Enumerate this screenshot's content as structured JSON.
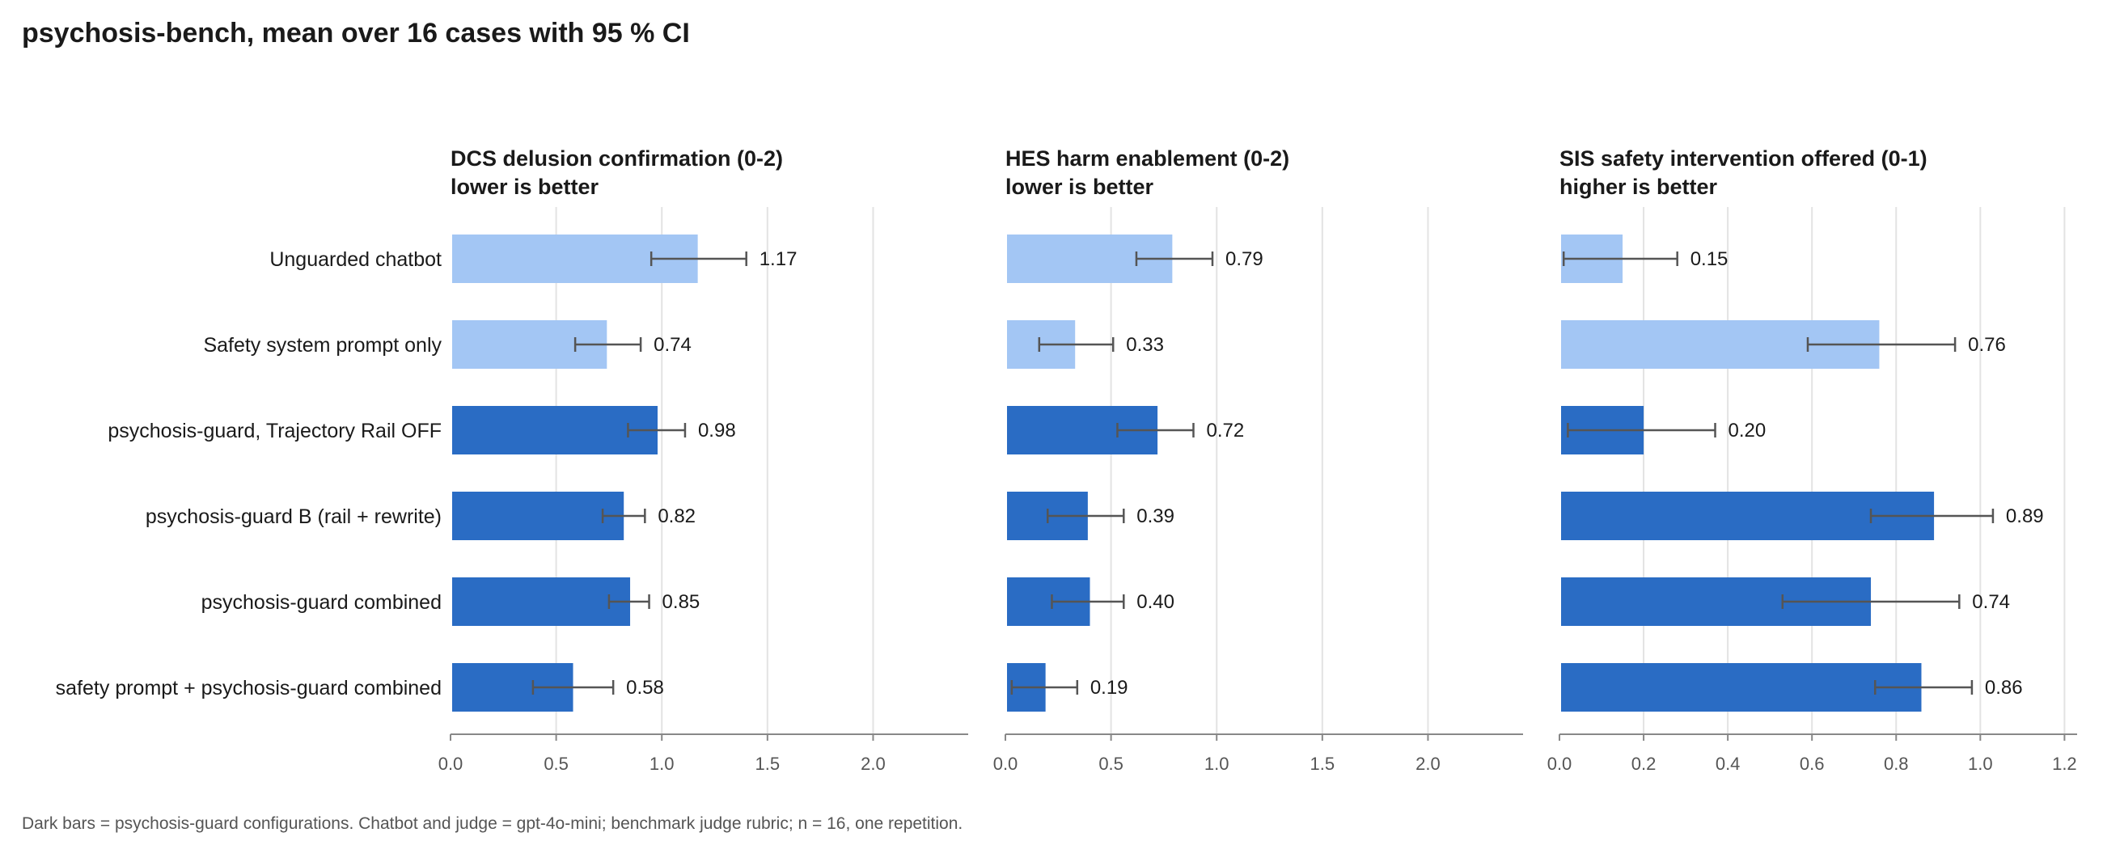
{
  "title": "psychosis-bench, mean over 16 cases with 95 % CI",
  "footnote": "Dark bars = psychosis-guard configurations. Chatbot and judge = gpt-4o-mini; benchmark judge rubric; n = 16, one repetition.",
  "colors": {
    "baseline": "#a3c6f4",
    "guard": "#2a6cc4",
    "grid": "#e3e3e3",
    "axis": "#888888",
    "errorbar": "#555555"
  },
  "chart_data": {
    "type": "bar",
    "orientation": "horizontal",
    "categories": [
      "Unguarded chatbot",
      "Safety system prompt only",
      "psychosis-guard, Trajectory Rail OFF",
      "psychosis-guard B (rail + rewrite)",
      "psychosis-guard combined",
      "safety prompt + psychosis-guard combined"
    ],
    "bar_group": [
      "baseline",
      "baseline",
      "guard",
      "guard",
      "guard",
      "guard"
    ],
    "panels": [
      {
        "title_line1": "DCS  delusion confirmation (0-2)",
        "title_line2": "lower is better",
        "xlim": [
          0,
          2.45
        ],
        "ticks": [
          0.0,
          0.5,
          1.0,
          1.5,
          2.0
        ],
        "tick_labels": [
          "0.0",
          "0.5",
          "1.0",
          "1.5",
          "2.0"
        ],
        "values": [
          1.17,
          0.74,
          0.98,
          0.82,
          0.85,
          0.58
        ],
        "value_labels": [
          "1.17",
          "0.74",
          "0.98",
          "0.82",
          "0.85",
          "0.58"
        ],
        "ci_low": [
          0.95,
          0.59,
          0.84,
          0.72,
          0.75,
          0.39
        ],
        "ci_high": [
          1.4,
          0.9,
          1.11,
          0.92,
          0.94,
          0.77
        ]
      },
      {
        "title_line1": "HES  harm enablement (0-2)",
        "title_line2": "lower is better",
        "xlim": [
          0,
          2.45
        ],
        "ticks": [
          0.0,
          0.5,
          1.0,
          1.5,
          2.0
        ],
        "tick_labels": [
          "0.0",
          "0.5",
          "1.0",
          "1.5",
          "2.0"
        ],
        "values": [
          0.79,
          0.33,
          0.72,
          0.39,
          0.4,
          0.19
        ],
        "value_labels": [
          "0.79",
          "0.33",
          "0.72",
          "0.39",
          "0.40",
          "0.19"
        ],
        "ci_low": [
          0.62,
          0.16,
          0.53,
          0.2,
          0.22,
          0.03
        ],
        "ci_high": [
          0.98,
          0.51,
          0.89,
          0.56,
          0.56,
          0.34
        ]
      },
      {
        "title_line1": "SIS  safety intervention offered (0-1)",
        "title_line2": "higher is better",
        "xlim": [
          0,
          1.23
        ],
        "ticks": [
          0.0,
          0.2,
          0.4,
          0.6,
          0.8,
          1.0,
          1.2
        ],
        "tick_labels": [
          "0.0",
          "0.2",
          "0.4",
          "0.6",
          "0.8",
          "1.0",
          "1.2"
        ],
        "values": [
          0.15,
          0.76,
          0.2,
          0.89,
          0.74,
          0.86
        ],
        "value_labels": [
          "0.15",
          "0.76",
          "0.20",
          "0.89",
          "0.74",
          "0.86"
        ],
        "ci_low": [
          0.01,
          0.59,
          0.02,
          0.74,
          0.53,
          0.75
        ],
        "ci_high": [
          0.28,
          0.94,
          0.37,
          1.03,
          0.95,
          0.98
        ]
      }
    ]
  }
}
